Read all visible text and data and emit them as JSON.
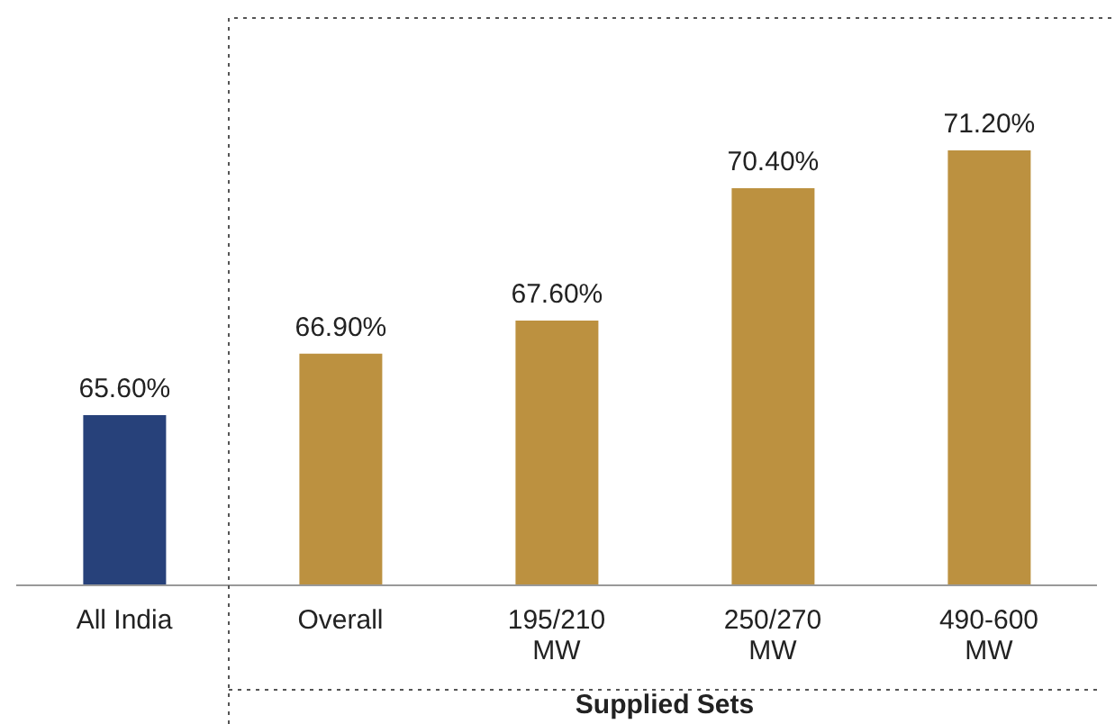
{
  "chart_data": {
    "type": "bar",
    "categories": [
      "All India",
      "Overall",
      "195/210\nMW",
      "250/270\nMW",
      "490-600\nMW"
    ],
    "values": [
      65.6,
      66.9,
      67.6,
      70.4,
      71.2
    ],
    "colors": [
      "#27417a",
      "#bc9140",
      "#bc9140",
      "#bc9140",
      "#bc9140"
    ],
    "value_labels": [
      "65.60%",
      "66.90%",
      "67.60%",
      "70.40%",
      "71.20%"
    ],
    "ylim": [
      62,
      74
    ],
    "tick_labels": "x",
    "annotations": [
      "Supplied Sets"
    ]
  }
}
